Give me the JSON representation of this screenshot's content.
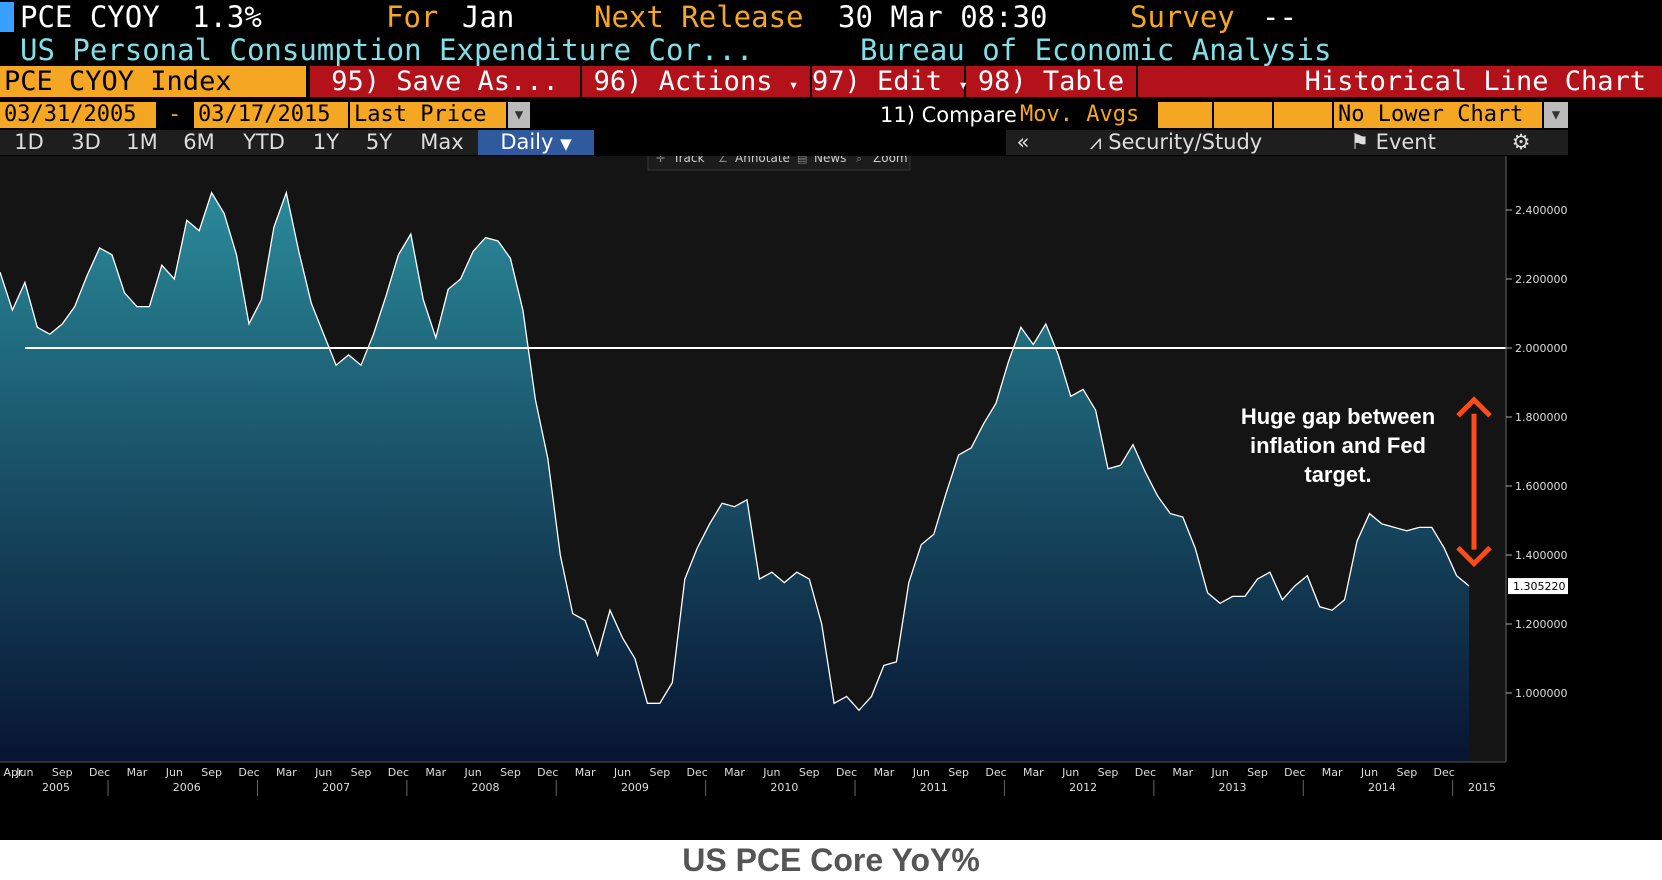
{
  "header": {
    "ticker": "PCE CYOY",
    "value": "1.3%",
    "for_label": "For",
    "for_value": "Jan",
    "next_release_label": "Next Release",
    "next_release_value": "30 Mar 08:30",
    "survey_label": "Survey",
    "survey_value": "--",
    "description": "US Personal Consumption Expenditure Cor...",
    "source": "Bureau of Economic Analysis"
  },
  "menu": {
    "security": "PCE CYOY Index",
    "save_as": "95) Save As...",
    "actions": "96) Actions",
    "edit": "97) Edit",
    "table": "98) Table",
    "chart_type": "Historical Line Chart"
  },
  "controls": {
    "start_date": "03/31/2005",
    "dash": "-",
    "end_date": "03/17/2015",
    "field": "Last Price",
    "compare_label": "11) Compare",
    "mov_avgs": "Mov. Avgs",
    "lower_chart": "No Lower Chart"
  },
  "periods": [
    "1D",
    "3D",
    "1M",
    "6M",
    "YTD",
    "1Y",
    "5Y",
    "Max"
  ],
  "frequency": "Daily",
  "toolbar": {
    "collapse": "«",
    "security_study": "Security/Study",
    "event": "Event",
    "track": "Track",
    "annotate": "Annotate",
    "news": "News",
    "zoom": "Zoom"
  },
  "footer_title": "US PCE Core YoY%",
  "colors": {
    "menu_red": "#b3121b",
    "orange": "#f5a623",
    "teal_top": "#2a8a9a",
    "navy_bottom": "#071432",
    "fed_line": "#ffffff",
    "arrow": "#ff4a1a"
  },
  "chart_data": {
    "type": "area",
    "start_month": "2005-04",
    "frequency": "monthly",
    "values": [
      2.22,
      2.11,
      2.19,
      2.06,
      2.04,
      2.07,
      2.12,
      2.21,
      2.29,
      2.27,
      2.16,
      2.12,
      2.12,
      2.24,
      2.2,
      2.37,
      2.34,
      2.45,
      2.39,
      2.27,
      2.07,
      2.14,
      2.35,
      2.45,
      2.28,
      2.13,
      2.04,
      1.95,
      1.98,
      1.95,
      2.04,
      2.15,
      2.27,
      2.33,
      2.14,
      2.03,
      2.17,
      2.2,
      2.28,
      2.32,
      2.31,
      2.26,
      2.11,
      1.85,
      1.68,
      1.4,
      1.23,
      1.21,
      1.11,
      1.24,
      1.16,
      1.1,
      0.97,
      0.97,
      1.03,
      1.33,
      1.42,
      1.49,
      1.55,
      1.54,
      1.56,
      1.33,
      1.35,
      1.32,
      1.35,
      1.33,
      1.2,
      0.97,
      0.99,
      0.95,
      0.99,
      1.08,
      1.09,
      1.32,
      1.43,
      1.46,
      1.58,
      1.69,
      1.71,
      1.78,
      1.84,
      1.96,
      2.06,
      2.01,
      2.07,
      1.98,
      1.86,
      1.88,
      1.82,
      1.65,
      1.66,
      1.72,
      1.64,
      1.57,
      1.52,
      1.51,
      1.42,
      1.29,
      1.26,
      1.28,
      1.28,
      1.33,
      1.35,
      1.27,
      1.31,
      1.34,
      1.25,
      1.24,
      1.27,
      1.44,
      1.52,
      1.49,
      1.48,
      1.47,
      1.48,
      1.48,
      1.42,
      1.34,
      1.31
    ],
    "last_value_label": "1.305220",
    "reference_line": 2.0,
    "ylim": [
      0.8,
      2.55
    ],
    "y_ticks": [
      "1.000000",
      "1.200000",
      "1.400000",
      "1.600000",
      "1.800000",
      "2.000000",
      "2.200000",
      "2.400000"
    ],
    "x_month_labels": [
      "Apr",
      "Jun",
      "Sep",
      "Dec",
      "Mar",
      "Jun",
      "Sep",
      "Dec",
      "Mar",
      "Jun",
      "Sep",
      "Dec",
      "Mar",
      "Jun",
      "Sep",
      "Dec",
      "Mar",
      "Jun",
      "Sep",
      "Dec",
      "Mar",
      "Jun",
      "Sep",
      "Dec",
      "Mar",
      "Jun",
      "Sep",
      "Dec",
      "Mar",
      "Jun",
      "Sep",
      "Dec",
      "Mar",
      "Jun",
      "Sep",
      "Dec",
      "Mar",
      "Jun",
      "Sep",
      "Dec"
    ],
    "x_year_labels": [
      "2005",
      "2006",
      "2007",
      "2008",
      "2009",
      "2010",
      "2011",
      "2012",
      "2013",
      "2014",
      "2015"
    ],
    "annotation": "Huge gap between inflation and Fed target.",
    "annotation_lines": [
      "Huge gap between",
      "inflation and Fed",
      "target."
    ],
    "grid": false
  }
}
